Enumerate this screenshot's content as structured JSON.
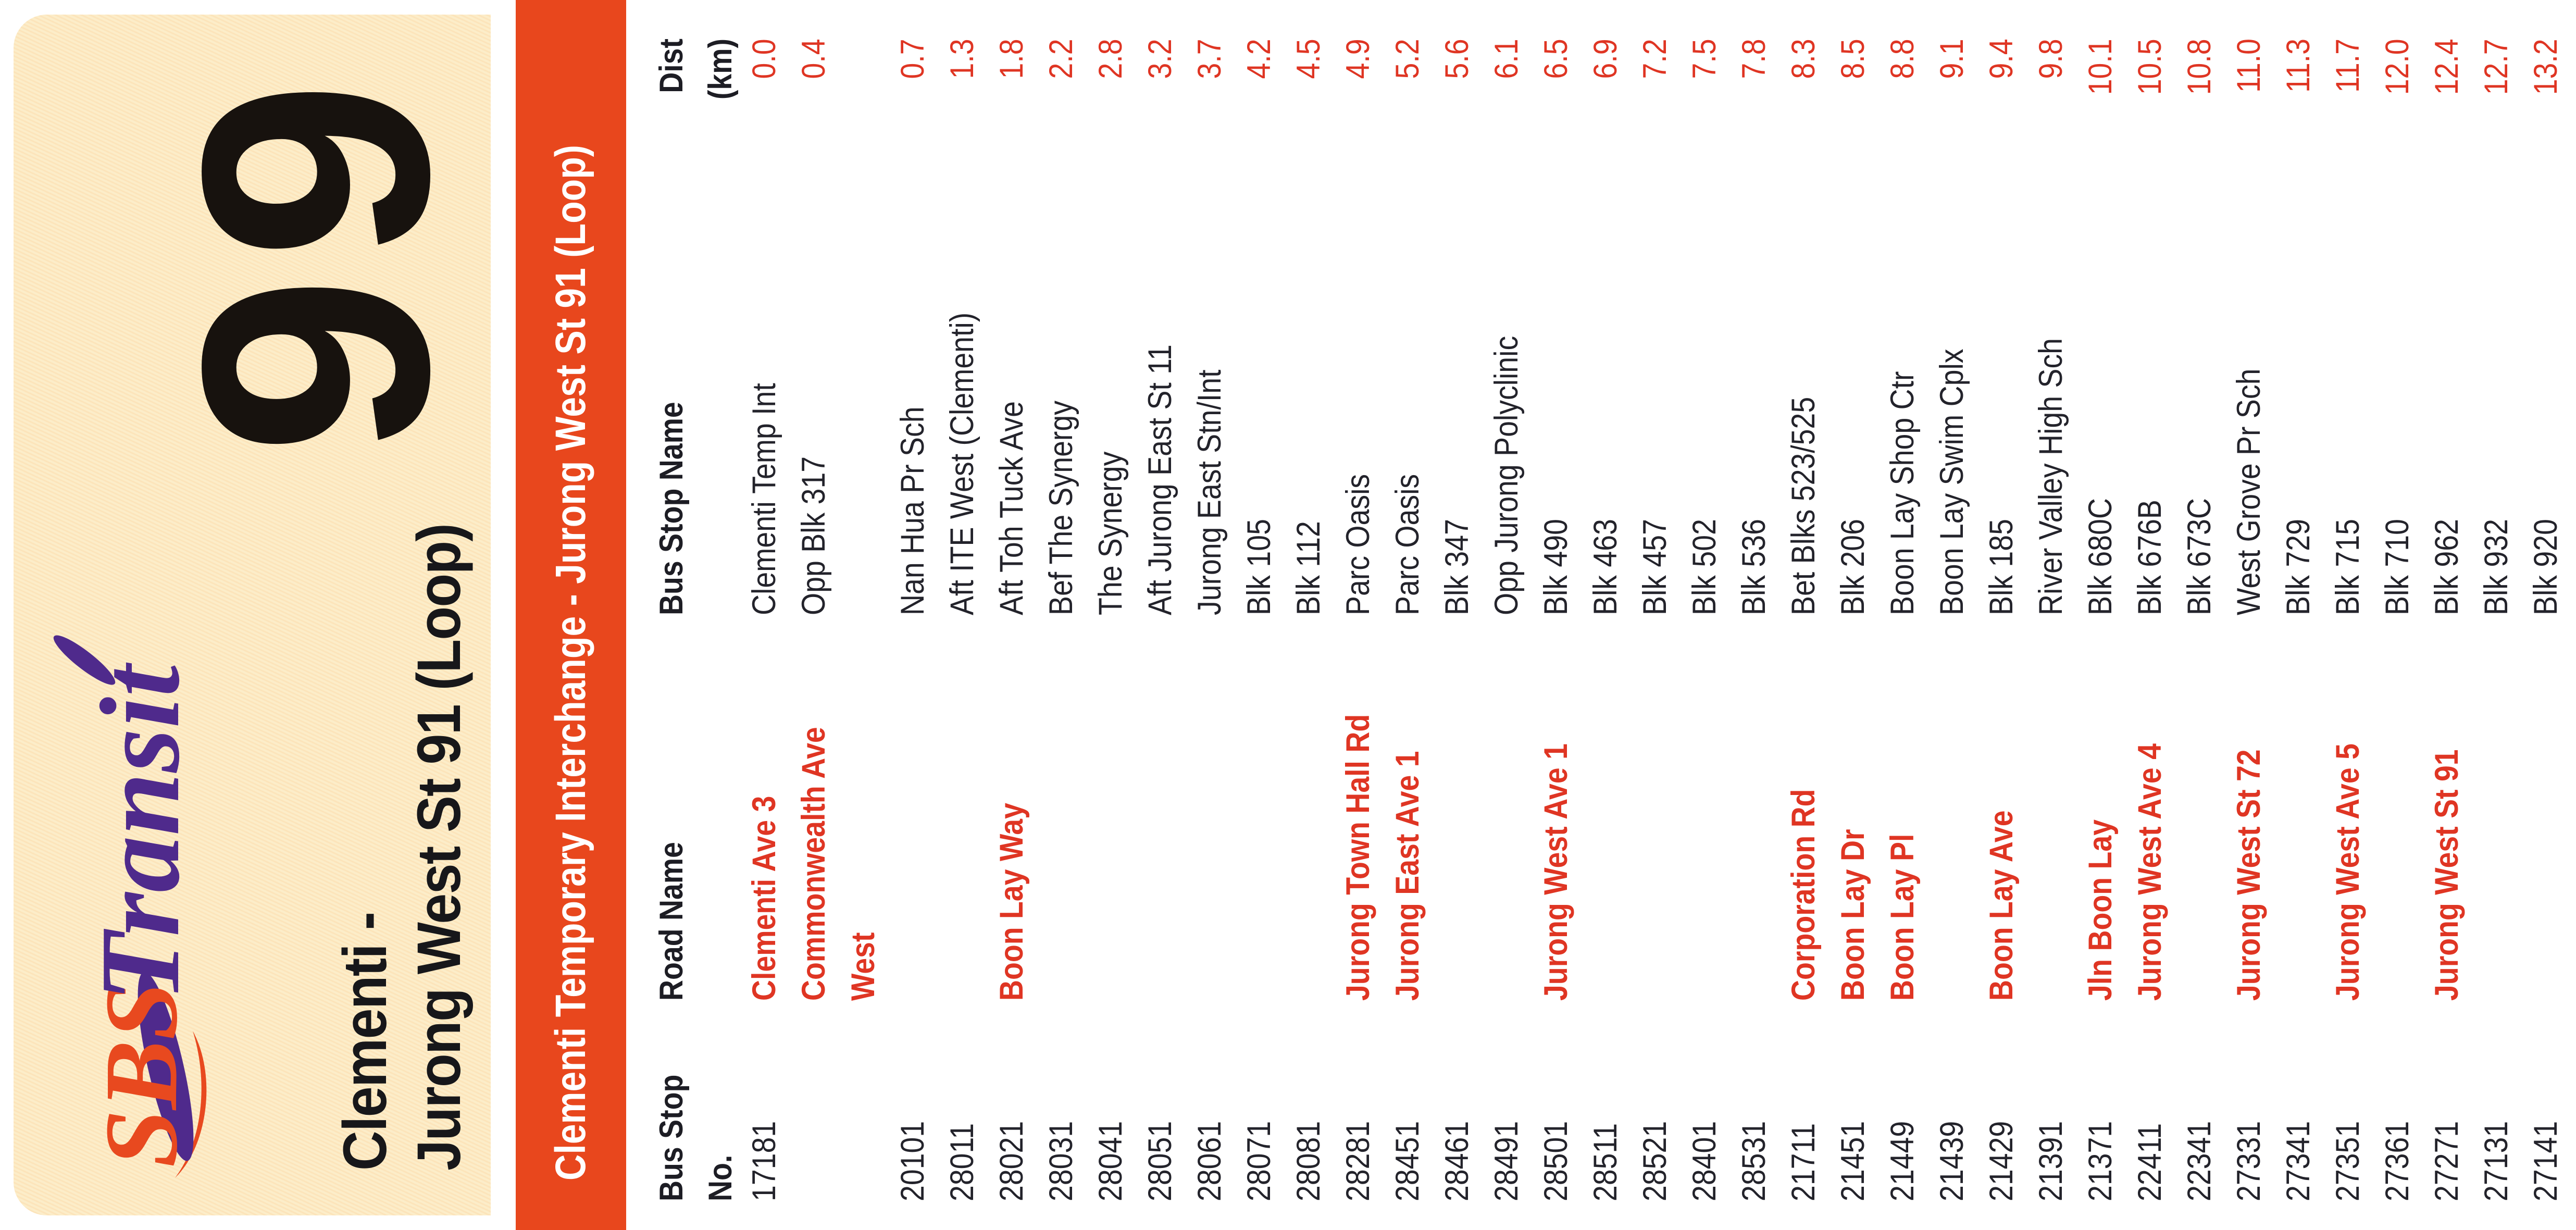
{
  "logo": {
    "sbs": "SBS",
    "transit": "Transit"
  },
  "header": {
    "route_number": "99",
    "route_name_line1": "Clementi -",
    "route_name_line2": "Jurong West St 91 (Loop)"
  },
  "banner": {
    "text": "Clementi Temporary Interchange - Jurong West St 91 (Loop)"
  },
  "table": {
    "headers": {
      "stop_no_line1": "Bus Stop",
      "stop_no_line2": "No.",
      "road_name": "Road Name",
      "stop_name": "Bus Stop Name",
      "dist_line1": "Dist",
      "dist_line2": "(km)"
    },
    "rows": [
      {
        "no": "17181",
        "road": "Clementi Ave 3",
        "name": "Clementi Temp Int",
        "dist": "0.0"
      },
      {
        "no": "",
        "road": "Commonwealth Ave",
        "name": "Opp Blk 317",
        "dist": "0.4"
      },
      {
        "no": "",
        "road": "West",
        "name": "",
        "dist": ""
      },
      {
        "no": "20101",
        "road": "",
        "name": "Nan Hua Pr Sch",
        "dist": "0.7"
      },
      {
        "no": "28011",
        "road": "",
        "name": "Aft ITE West (Clementi)",
        "dist": "1.3"
      },
      {
        "no": "28021",
        "road": "Boon Lay Way",
        "name": "Aft Toh Tuck Ave",
        "dist": "1.8"
      },
      {
        "no": "28031",
        "road": "",
        "name": "Bef The Synergy",
        "dist": "2.2"
      },
      {
        "no": "28041",
        "road": "",
        "name": "The Synergy",
        "dist": "2.8"
      },
      {
        "no": "28051",
        "road": "",
        "name": "Aft Jurong East St 11",
        "dist": "3.2"
      },
      {
        "no": "28061",
        "road": "",
        "name": "Jurong East Stn/Int",
        "dist": "3.7"
      },
      {
        "no": "28071",
        "road": "",
        "name": "Blk 105",
        "dist": "4.2"
      },
      {
        "no": "28081",
        "road": "",
        "name": "Blk 112",
        "dist": "4.5"
      },
      {
        "no": "28281",
        "road": "Jurong Town Hall Rd",
        "name": "Parc Oasis",
        "dist": "4.9"
      },
      {
        "no": "28451",
        "road": "Jurong East Ave 1",
        "name": "Parc Oasis",
        "dist": "5.2"
      },
      {
        "no": "28461",
        "road": "",
        "name": "Blk 347",
        "dist": "5.6"
      },
      {
        "no": "28491",
        "road": "",
        "name": "Opp Jurong Polyclinic",
        "dist": "6.1"
      },
      {
        "no": "28501",
        "road": "Jurong West Ave 1",
        "name": "Blk 490",
        "dist": "6.5"
      },
      {
        "no": "28511",
        "road": "",
        "name": "Blk 463",
        "dist": "6.9"
      },
      {
        "no": "28521",
        "road": "",
        "name": "Blk 457",
        "dist": "7.2"
      },
      {
        "no": "28401",
        "road": "",
        "name": "Blk 502",
        "dist": "7.5"
      },
      {
        "no": "28531",
        "road": "",
        "name": "Blk 536",
        "dist": "7.8"
      },
      {
        "no": "21711",
        "road": "Corporation Rd",
        "name": "Bet Blks 523/525",
        "dist": "8.3"
      },
      {
        "no": "21451",
        "road": "Boon Lay Dr",
        "name": "Blk 206",
        "dist": "8.5"
      },
      {
        "no": "21449",
        "road": "Boon Lay Pl",
        "name": "Boon Lay Shop Ctr",
        "dist": "8.8"
      },
      {
        "no": "21439",
        "road": "",
        "name": "Boon Lay Swim Cplx",
        "dist": "9.1"
      },
      {
        "no": "21429",
        "road": "Boon Lay Ave",
        "name": "Blk 185",
        "dist": "9.4"
      },
      {
        "no": "21391",
        "road": "",
        "name": "River Valley High Sch",
        "dist": "9.8"
      },
      {
        "no": "21371",
        "road": "Jln Boon Lay",
        "name": "Blk 680C",
        "dist": "10.1"
      },
      {
        "no": "22411",
        "road": "Jurong West Ave 4",
        "name": "Blk 676B",
        "dist": "10.5"
      },
      {
        "no": "22341",
        "road": "",
        "name": "Blk 673C",
        "dist": "10.8"
      },
      {
        "no": "27331",
        "road": "Jurong West St 72",
        "name": "West Grove Pr Sch",
        "dist": "11.0"
      },
      {
        "no": "27341",
        "road": "",
        "name": "Blk 729",
        "dist": "11.3"
      },
      {
        "no": "27351",
        "road": "Jurong West Ave 5",
        "name": "Blk 715",
        "dist": "11.7"
      },
      {
        "no": "27361",
        "road": "",
        "name": "Blk 710",
        "dist": "12.0"
      },
      {
        "no": "27271",
        "road": "Jurong West St 91",
        "name": "Blk 962",
        "dist": "12.4"
      },
      {
        "no": "27131",
        "road": "",
        "name": "Blk 932",
        "dist": "12.7"
      },
      {
        "no": "27141",
        "road": "",
        "name": "Blk 920",
        "dist": "13.2"
      }
    ]
  },
  "colors": {
    "cream": "#fcedc9",
    "orange": "#e8471d",
    "red": "#df3523",
    "ink": "#23232b",
    "purple": "#4f2a8c",
    "sbs_orange": "#e8491f",
    "route_ink": "#17120e"
  }
}
